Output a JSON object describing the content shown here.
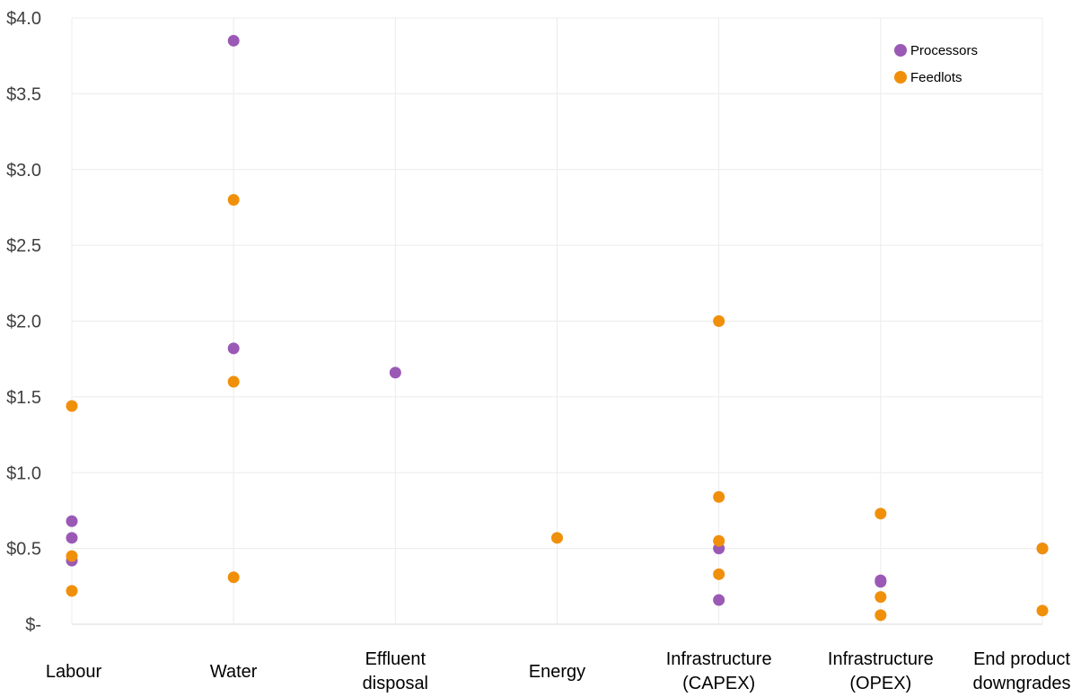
{
  "chart_data": {
    "type": "scatter",
    "title": "",
    "xlabel": "",
    "ylabel": "",
    "ylim": [
      0,
      4.0
    ],
    "yticks": [
      {
        "value": 0,
        "label": "$-"
      },
      {
        "value": 0.5,
        "label": "$0.5"
      },
      {
        "value": 1.0,
        "label": "$1.0"
      },
      {
        "value": 1.5,
        "label": "$1.5"
      },
      {
        "value": 2.0,
        "label": "$2.0"
      },
      {
        "value": 2.5,
        "label": "$2.5"
      },
      {
        "value": 3.0,
        "label": "$3.0"
      },
      {
        "value": 3.5,
        "label": "$3.5"
      },
      {
        "value": 4.0,
        "label": "$4.0"
      }
    ],
    "categories": [
      [
        "Labour"
      ],
      [
        "Water"
      ],
      [
        "Effluent",
        "disposal"
      ],
      [
        "Energy"
      ],
      [
        "Infrastructure",
        "(CAPEX)"
      ],
      [
        "Infrastructure",
        "(OPEX)"
      ],
      [
        "End product",
        "downgrades"
      ]
    ],
    "grid": true,
    "legend_position": "top-right",
    "series": [
      {
        "name": "Processors",
        "color": "#9b59b6",
        "points": [
          [
            0,
            0.68
          ],
          [
            0,
            0.57
          ],
          [
            0,
            0.42
          ],
          [
            1,
            3.85
          ],
          [
            1,
            1.82
          ],
          [
            2,
            1.66
          ],
          [
            4,
            0.5
          ],
          [
            4,
            0.16
          ],
          [
            5,
            0.29
          ],
          [
            5,
            0.28
          ],
          [
            6,
            0.5
          ]
        ]
      },
      {
        "name": "Feedlots",
        "color": "#f0900a",
        "points": [
          [
            0,
            1.44
          ],
          [
            0,
            0.45
          ],
          [
            0,
            0.22
          ],
          [
            1,
            2.8
          ],
          [
            1,
            1.6
          ],
          [
            1,
            0.31
          ],
          [
            3,
            0.57
          ],
          [
            4,
            2.0
          ],
          [
            4,
            0.84
          ],
          [
            4,
            0.55
          ],
          [
            4,
            0.33
          ],
          [
            5,
            0.73
          ],
          [
            5,
            0.18
          ],
          [
            5,
            0.06
          ],
          [
            6,
            0.5
          ],
          [
            6,
            0.09
          ]
        ]
      }
    ]
  }
}
